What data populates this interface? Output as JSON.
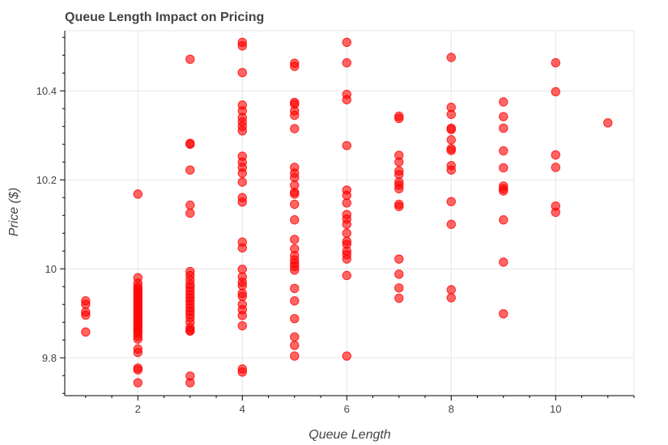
{
  "chart_data": {
    "type": "scatter",
    "title": "Queue Length Impact on Pricing",
    "xlabel": "Queue Length",
    "ylabel": "Price ($)",
    "xlim": [
      0.6,
      11.5
    ],
    "ylim": [
      9.715,
      10.535
    ],
    "x_ticks": [
      2,
      4,
      6,
      8,
      10
    ],
    "x_tick_labels": [
      "2",
      "4",
      "6",
      "8",
      "10"
    ],
    "y_ticks": [
      9.8,
      10.0,
      10.2,
      10.4
    ],
    "y_tick_labels": [
      "9.8",
      "10",
      "10.2",
      "10.4"
    ],
    "grid": true,
    "marker_color": "#ff0000",
    "marker_alpha": 0.6,
    "points": [
      [
        1,
        9.928
      ],
      [
        1,
        9.92
      ],
      [
        1,
        9.903
      ],
      [
        1,
        9.896
      ],
      [
        1,
        9.858
      ],
      [
        2,
        10.168
      ],
      [
        2,
        9.98
      ],
      [
        2,
        9.968
      ],
      [
        2,
        9.96
      ],
      [
        2,
        9.955
      ],
      [
        2,
        9.95
      ],
      [
        2,
        9.945
      ],
      [
        2,
        9.94
      ],
      [
        2,
        9.935
      ],
      [
        2,
        9.93
      ],
      [
        2,
        9.925
      ],
      [
        2,
        9.92
      ],
      [
        2,
        9.915
      ],
      [
        2,
        9.91
      ],
      [
        2,
        9.905
      ],
      [
        2,
        9.9
      ],
      [
        2,
        9.895
      ],
      [
        2,
        9.89
      ],
      [
        2,
        9.885
      ],
      [
        2,
        9.88
      ],
      [
        2,
        9.875
      ],
      [
        2,
        9.87
      ],
      [
        2,
        9.865
      ],
      [
        2,
        9.86
      ],
      [
        2,
        9.855
      ],
      [
        2,
        9.848
      ],
      [
        2,
        9.842
      ],
      [
        2,
        9.82
      ],
      [
        2,
        9.812
      ],
      [
        2,
        9.777
      ],
      [
        2,
        9.773
      ],
      [
        2,
        9.744
      ],
      [
        3,
        10.471
      ],
      [
        3,
        10.282
      ],
      [
        3,
        10.28
      ],
      [
        3,
        10.222
      ],
      [
        3,
        10.143
      ],
      [
        3,
        10.125
      ],
      [
        3,
        9.994
      ],
      [
        3,
        9.985
      ],
      [
        3,
        9.975
      ],
      [
        3,
        9.965
      ],
      [
        3,
        9.958
      ],
      [
        3,
        9.95
      ],
      [
        3,
        9.942
      ],
      [
        3,
        9.935
      ],
      [
        3,
        9.928
      ],
      [
        3,
        9.92
      ],
      [
        3,
        9.912
      ],
      [
        3,
        9.905
      ],
      [
        3,
        9.898
      ],
      [
        3,
        9.89
      ],
      [
        3,
        9.88
      ],
      [
        3,
        9.868
      ],
      [
        3,
        9.862
      ],
      [
        3,
        9.86
      ],
      [
        3,
        9.759
      ],
      [
        3,
        9.744
      ],
      [
        4,
        10.509
      ],
      [
        4,
        10.501
      ],
      [
        4,
        10.441
      ],
      [
        4,
        10.368
      ],
      [
        4,
        10.355
      ],
      [
        4,
        10.34
      ],
      [
        4,
        10.33
      ],
      [
        4,
        10.32
      ],
      [
        4,
        10.31
      ],
      [
        4,
        10.253
      ],
      [
        4,
        10.24
      ],
      [
        4,
        10.228
      ],
      [
        4,
        10.215
      ],
      [
        4,
        10.195
      ],
      [
        4,
        10.16
      ],
      [
        4,
        10.15
      ],
      [
        4,
        10.06
      ],
      [
        4,
        10.047
      ],
      [
        4,
        9.999
      ],
      [
        4,
        9.982
      ],
      [
        4,
        9.97
      ],
      [
        4,
        9.962
      ],
      [
        4,
        9.945
      ],
      [
        4,
        9.938
      ],
      [
        4,
        9.92
      ],
      [
        4,
        9.908
      ],
      [
        4,
        9.895
      ],
      [
        4,
        9.872
      ],
      [
        4,
        9.775
      ],
      [
        4,
        9.768
      ],
      [
        5,
        10.462
      ],
      [
        5,
        10.455
      ],
      [
        5,
        10.374
      ],
      [
        5,
        10.37
      ],
      [
        5,
        10.355
      ],
      [
        5,
        10.345
      ],
      [
        5,
        10.315
      ],
      [
        5,
        10.228
      ],
      [
        5,
        10.215
      ],
      [
        5,
        10.205
      ],
      [
        5,
        10.188
      ],
      [
        5,
        10.172
      ],
      [
        5,
        10.168
      ],
      [
        5,
        10.145
      ],
      [
        5,
        10.11
      ],
      [
        5,
        10.066
      ],
      [
        5,
        10.045
      ],
      [
        5,
        10.03
      ],
      [
        5,
        10.02
      ],
      [
        5,
        10.012
      ],
      [
        5,
        10.005
      ],
      [
        5,
        9.997
      ],
      [
        5,
        9.956
      ],
      [
        5,
        9.928
      ],
      [
        5,
        9.888
      ],
      [
        5,
        9.847
      ],
      [
        5,
        9.828
      ],
      [
        5,
        9.804
      ],
      [
        6,
        10.509
      ],
      [
        6,
        10.463
      ],
      [
        6,
        10.392
      ],
      [
        6,
        10.38
      ],
      [
        6,
        10.277
      ],
      [
        6,
        10.177
      ],
      [
        6,
        10.165
      ],
      [
        6,
        10.148
      ],
      [
        6,
        10.122
      ],
      [
        6,
        10.112
      ],
      [
        6,
        10.1
      ],
      [
        6,
        10.08
      ],
      [
        6,
        10.062
      ],
      [
        6,
        10.055
      ],
      [
        6,
        10.04
      ],
      [
        6,
        10.032
      ],
      [
        6,
        10.022
      ],
      [
        6,
        9.985
      ],
      [
        6,
        9.804
      ],
      [
        7,
        10.343
      ],
      [
        7,
        10.338
      ],
      [
        7,
        10.255
      ],
      [
        7,
        10.24
      ],
      [
        7,
        10.22
      ],
      [
        7,
        10.212
      ],
      [
        7,
        10.195
      ],
      [
        7,
        10.188
      ],
      [
        7,
        10.18
      ],
      [
        7,
        10.145
      ],
      [
        7,
        10.14
      ],
      [
        7,
        10.022
      ],
      [
        7,
        9.988
      ],
      [
        7,
        9.957
      ],
      [
        7,
        9.934
      ],
      [
        8,
        10.475
      ],
      [
        8,
        10.363
      ],
      [
        8,
        10.347
      ],
      [
        8,
        10.316
      ],
      [
        8,
        10.313
      ],
      [
        8,
        10.29
      ],
      [
        8,
        10.27
      ],
      [
        8,
        10.266
      ],
      [
        8,
        10.232
      ],
      [
        8,
        10.222
      ],
      [
        8,
        10.151
      ],
      [
        8,
        10.1
      ],
      [
        8,
        9.953
      ],
      [
        8,
        9.935
      ],
      [
        9,
        10.375
      ],
      [
        9,
        10.342
      ],
      [
        9,
        10.316
      ],
      [
        9,
        10.265
      ],
      [
        9,
        10.227
      ],
      [
        9,
        10.186
      ],
      [
        9,
        10.18
      ],
      [
        9,
        10.175
      ],
      [
        9,
        10.11
      ],
      [
        9,
        10.015
      ],
      [
        9,
        9.899
      ],
      [
        10,
        10.463
      ],
      [
        10,
        10.398
      ],
      [
        10,
        10.256
      ],
      [
        10,
        10.228
      ],
      [
        10,
        10.141
      ],
      [
        10,
        10.127
      ],
      [
        11,
        10.328
      ]
    ]
  }
}
